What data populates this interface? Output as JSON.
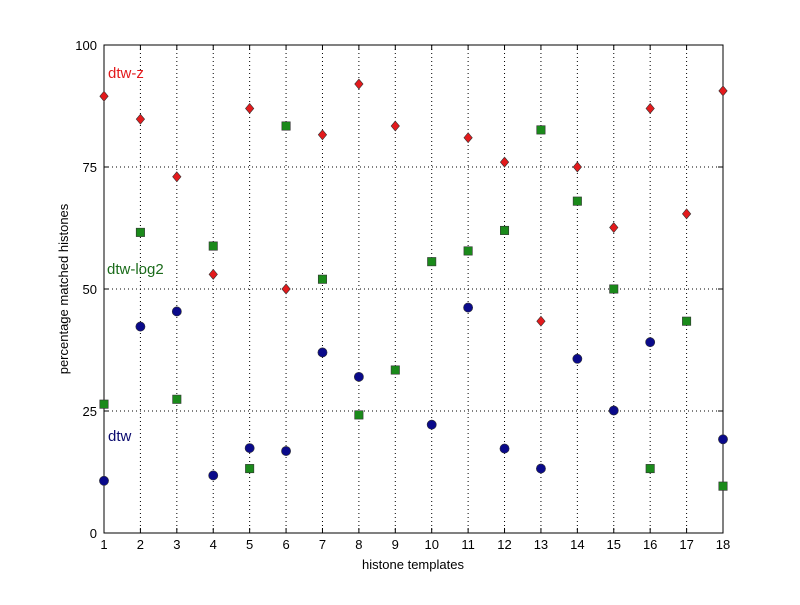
{
  "chart_data": {
    "type": "scatter",
    "xlabel": "histone templates",
    "ylabel": "percentage matched histones",
    "xlim": [
      1,
      18
    ],
    "ylim": [
      0,
      100
    ],
    "xticks": [
      1,
      2,
      3,
      4,
      5,
      6,
      7,
      8,
      9,
      10,
      11,
      12,
      13,
      14,
      15,
      16,
      17,
      18
    ],
    "yticks": [
      0,
      25,
      50,
      75,
      100
    ],
    "grid": true,
    "x": [
      1,
      2,
      3,
      4,
      5,
      6,
      7,
      8,
      9,
      10,
      11,
      12,
      13,
      14,
      15,
      16,
      17,
      18
    ],
    "series": [
      {
        "name": "dtw-z",
        "color": "#e31a1c",
        "marker": "diamond",
        "values": [
          89.5,
          84.8,
          73,
          53,
          87,
          50,
          81.6,
          92,
          83.4,
          null,
          81,
          76,
          43.4,
          75,
          62.6,
          87,
          65.4,
          90.6
        ]
      },
      {
        "name": "dtw-log2",
        "color": "#1a8a1a",
        "marker": "square",
        "values": [
          26.4,
          61.6,
          27.4,
          58.8,
          13.2,
          83.4,
          52,
          24.2,
          33.4,
          55.6,
          57.8,
          62,
          82.6,
          68,
          50,
          13.2,
          43.4,
          9.6
        ]
      },
      {
        "name": "dtw",
        "color": "#0a0a8a",
        "marker": "circle",
        "values": [
          10.7,
          42.3,
          45.4,
          11.8,
          17.4,
          16.8,
          37,
          32,
          null,
          22.2,
          46.2,
          17.3,
          13.2,
          35.7,
          25.1,
          39.1,
          null,
          19.2
        ]
      }
    ]
  }
}
